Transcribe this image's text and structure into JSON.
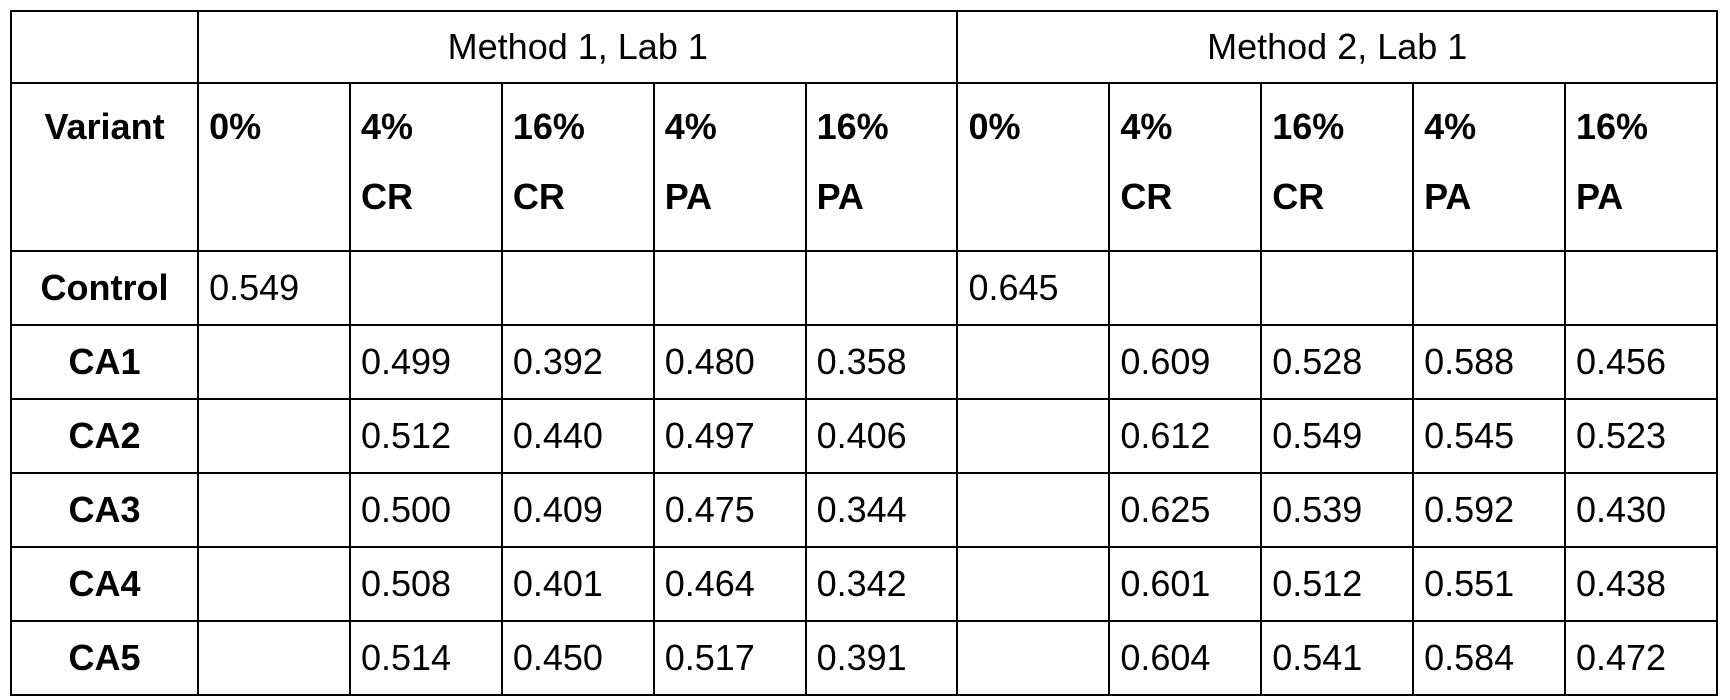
{
  "table": {
    "groups": [
      "Method 1, Lab 1",
      "Method 2, Lab 1"
    ],
    "variant_header": "Variant",
    "columns": [
      {
        "pct": "0%",
        "kind": ""
      },
      {
        "pct": "4%",
        "kind": "CR"
      },
      {
        "pct": "16%",
        "kind": "CR"
      },
      {
        "pct": "4%",
        "kind": "PA"
      },
      {
        "pct": "16%",
        "kind": "PA"
      },
      {
        "pct": "0%",
        "kind": ""
      },
      {
        "pct": "4%",
        "kind": "CR"
      },
      {
        "pct": "16%",
        "kind": "CR"
      },
      {
        "pct": "4%",
        "kind": "PA"
      },
      {
        "pct": "16%",
        "kind": "PA"
      }
    ],
    "rows": [
      {
        "variant": "Control",
        "values": [
          "0.549",
          "",
          "",
          "",
          "",
          "0.645",
          "",
          "",
          "",
          ""
        ]
      },
      {
        "variant": "CA1",
        "values": [
          "",
          "0.499",
          "0.392",
          "0.480",
          "0.358",
          "",
          "0.609",
          "0.528",
          "0.588",
          "0.456"
        ]
      },
      {
        "variant": "CA2",
        "values": [
          "",
          "0.512",
          "0.440",
          "0.497",
          "0.406",
          "",
          "0.612",
          "0.549",
          "0.545",
          "0.523"
        ]
      },
      {
        "variant": "CA3",
        "values": [
          "",
          "0.500",
          "0.409",
          "0.475",
          "0.344",
          "",
          "0.625",
          "0.539",
          "0.592",
          "0.430"
        ]
      },
      {
        "variant": "CA4",
        "values": [
          "",
          "0.508",
          "0.401",
          "0.464",
          "0.342",
          "",
          "0.601",
          "0.512",
          "0.551",
          "0.438"
        ]
      },
      {
        "variant": "CA5",
        "values": [
          "",
          "0.514",
          "0.450",
          "0.517",
          "0.391",
          "",
          "0.604",
          "0.541",
          "0.584",
          "0.472"
        ]
      }
    ]
  }
}
